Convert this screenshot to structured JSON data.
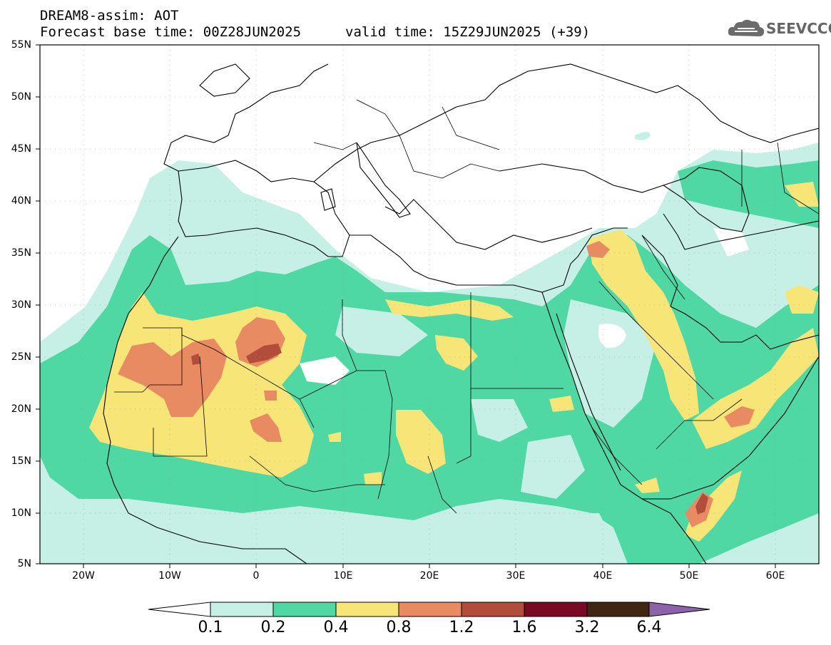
{
  "header": {
    "title": "DREAM8-assim: AOT",
    "base_time": "Forecast base time: 00Z28JUN2025",
    "valid_time": "valid time: 15Z29JUN2025 (+39)"
  },
  "logo": {
    "text": "SEEVCCC",
    "icon": "cloud-icon"
  },
  "map": {
    "lat_labels": [
      "55N",
      "50N",
      "45N",
      "40N",
      "35N",
      "30N",
      "25N",
      "20N",
      "15N",
      "10N",
      "5N"
    ],
    "lon_labels": [
      "20W",
      "10W",
      "0",
      "10E",
      "20E",
      "30E",
      "40E",
      "50E",
      "60E"
    ],
    "lat_range": [
      5,
      55
    ],
    "lon_range": [
      -25,
      65
    ]
  },
  "colorbar": {
    "levels": [
      "0.1",
      "0.2",
      "0.4",
      "0.8",
      "1.2",
      "1.6",
      "3.2",
      "6.4"
    ],
    "colors": [
      "#c6f0e6",
      "#4fd8a3",
      "#f7e677",
      "#e88a62",
      "#b24d3c",
      "#7a0a24",
      "#402613",
      "#8e62a8"
    ]
  }
}
